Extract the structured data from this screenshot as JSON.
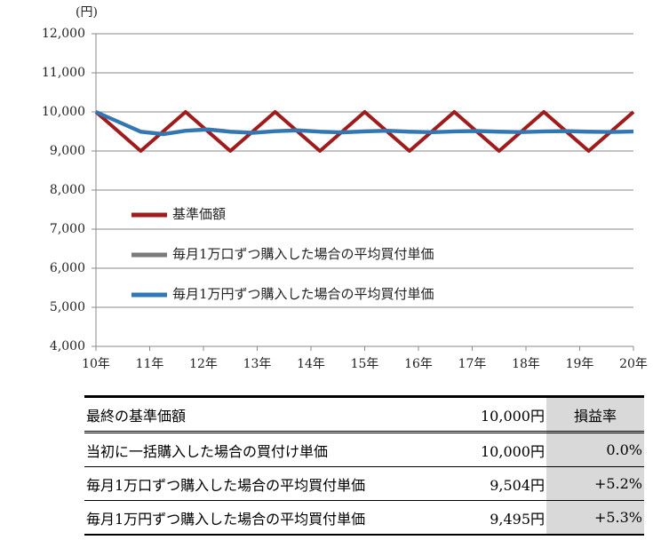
{
  "chart_data": {
    "type": "line",
    "ylabel": "(円)",
    "ylim": [
      4000,
      12000
    ],
    "yticks": [
      {
        "value": 4000,
        "label": "4,000"
      },
      {
        "value": 5000,
        "label": "5,000"
      },
      {
        "value": 6000,
        "label": "6,000"
      },
      {
        "value": 7000,
        "label": "7,000"
      },
      {
        "value": 8000,
        "label": "8,000"
      },
      {
        "value": 9000,
        "label": "9,000"
      },
      {
        "value": 10000,
        "label": "10,000"
      },
      {
        "value": 11000,
        "label": "11,000"
      },
      {
        "value": 12000,
        "label": "12,000"
      }
    ],
    "xlim": [
      10,
      20
    ],
    "xticks": [
      {
        "value": 10,
        "label": "10年"
      },
      {
        "value": 11,
        "label": "11年"
      },
      {
        "value": 12,
        "label": "12年"
      },
      {
        "value": 13,
        "label": "13年"
      },
      {
        "value": 14,
        "label": "14年"
      },
      {
        "value": 15,
        "label": "15年"
      },
      {
        "value": 16,
        "label": "16年"
      },
      {
        "value": 17,
        "label": "17年"
      },
      {
        "value": 18,
        "label": "18年"
      },
      {
        "value": 19,
        "label": "19年"
      },
      {
        "value": 20,
        "label": "20年"
      }
    ],
    "grid": true,
    "series": [
      {
        "name": "基準価額",
        "color": "#a01c1c",
        "x": [
          10,
          10.833,
          11.667,
          12.5,
          13.333,
          14.167,
          15,
          15.833,
          16.667,
          17.5,
          18.333,
          19.167,
          20
        ],
        "values": [
          10000,
          9000,
          10000,
          9000,
          10000,
          9000,
          10000,
          9000,
          10000,
          9000,
          10000,
          9000,
          10000
        ]
      },
      {
        "name": "毎月1万口ずつ購入した場合の平均買付単価",
        "color": "#7a7a7a",
        "x": [
          10,
          10.417,
          10.833,
          11.25,
          11.667,
          12.083,
          12.5,
          12.917,
          13.333,
          13.75,
          14.167,
          14.583,
          15,
          15.417,
          15.833,
          16.25,
          16.667,
          17.083,
          17.5,
          17.917,
          18.333,
          18.75,
          19.167,
          19.583,
          20
        ],
        "values": [
          10000,
          9750,
          9500,
          9438,
          9524,
          9558,
          9500,
          9472,
          9512,
          9533,
          9500,
          9482,
          9508,
          9523,
          9500,
          9487,
          9506,
          9517,
          9500,
          9490,
          9505,
          9514,
          9500,
          9491,
          9504
        ]
      },
      {
        "name": "毎月1万円ずつ購入した場合の平均買付単価",
        "color": "#2e78b8",
        "x": [
          10,
          10.417,
          10.833,
          11.25,
          11.667,
          12.083,
          12.5,
          12.917,
          13.333,
          13.75,
          14.167,
          14.583,
          15,
          15.417,
          15.833,
          16.25,
          16.667,
          17.083,
          17.5,
          17.917,
          18.333,
          18.75,
          19.167,
          19.583,
          20
        ],
        "values": [
          10000,
          9744,
          9487,
          9425,
          9513,
          9546,
          9489,
          9461,
          9502,
          9523,
          9490,
          9472,
          9498,
          9513,
          9490,
          9477,
          9496,
          9507,
          9490,
          9481,
          9496,
          9504,
          9490,
          9482,
          9495
        ]
      }
    ]
  },
  "table": {
    "rows": [
      [
        "最終の基準価額",
        "10,000円",
        "損益率"
      ],
      [
        "当初に一括購入した場合の買付け単価",
        "10,000円",
        "0.0%"
      ],
      [
        "毎月1万口ずつ購入した場合の平均買付単価",
        "9,504円",
        "+5.2%"
      ],
      [
        "毎月1万円ずつ購入した場合の平均買付単価",
        "9,495円",
        "+5.3%"
      ]
    ]
  }
}
